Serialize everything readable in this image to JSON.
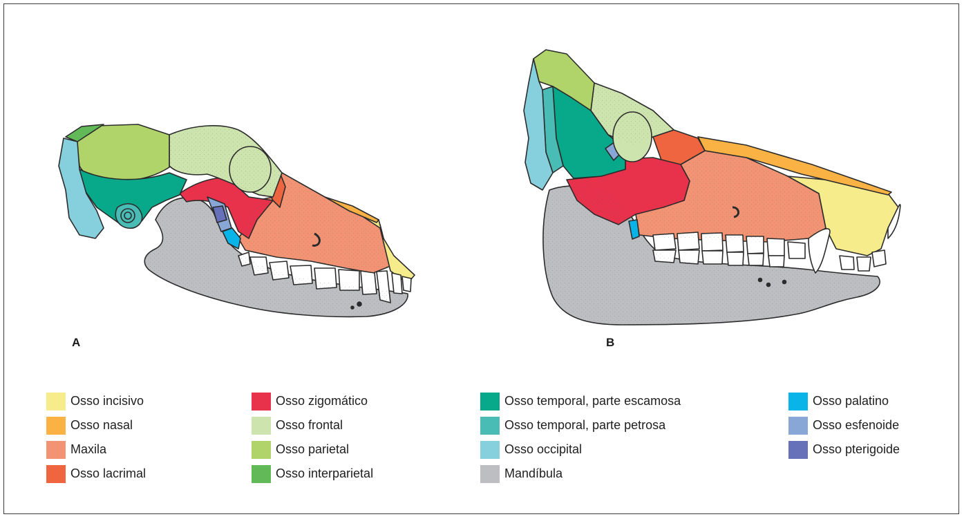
{
  "panels": [
    {
      "label": "A"
    },
    {
      "label": "B"
    }
  ],
  "colors": {
    "incisive": "#f7ec8c",
    "nasal": "#f9b243",
    "maxilla": "#f29474",
    "lacrimal": "#ef6540",
    "zygomatic": "#e8314a",
    "frontal": "#cde4ae",
    "parietal": "#b1d46a",
    "interparietal": "#62b957",
    "temporal_squamous": "#08a88a",
    "temporal_petrous": "#49bdb5",
    "occipital": "#86cfdd",
    "mandible": "#bdbec1",
    "palatine": "#09b5e8",
    "sphenoid": "#88a7d7",
    "pterygoid": "#6771b9",
    "teeth": "#ffffff",
    "outline": "#2b2b2b"
  },
  "legend": {
    "columns": [
      [
        {
          "label": "Osso incisivo",
          "color": "#f7ec8c"
        },
        {
          "label": "Osso nasal",
          "color": "#f9b243"
        },
        {
          "label": "Maxila",
          "color": "#f29474"
        },
        {
          "label": "Osso lacrimal",
          "color": "#ef6540"
        }
      ],
      [
        {
          "label": "Osso zigomático",
          "color": "#e8314a"
        },
        {
          "label": "Osso frontal",
          "color": "#cde4ae"
        },
        {
          "label": "Osso parietal",
          "color": "#b1d46a"
        },
        {
          "label": "Osso interparietal",
          "color": "#62b957"
        }
      ],
      [
        {
          "label": "Osso temporal, parte escamosa",
          "color": "#08a88a"
        },
        {
          "label": "Osso temporal, parte petrosa",
          "color": "#49bdb5"
        },
        {
          "label": "Osso occipital",
          "color": "#86cfdd"
        },
        {
          "label": "Mandíbula",
          "color": "#bdbec1"
        }
      ],
      [
        {
          "label": "Osso palatino",
          "color": "#09b5e8"
        },
        {
          "label": "Osso esfenoide",
          "color": "#88a7d7"
        },
        {
          "label": "Osso pterigoide",
          "color": "#6771b9"
        }
      ]
    ]
  }
}
